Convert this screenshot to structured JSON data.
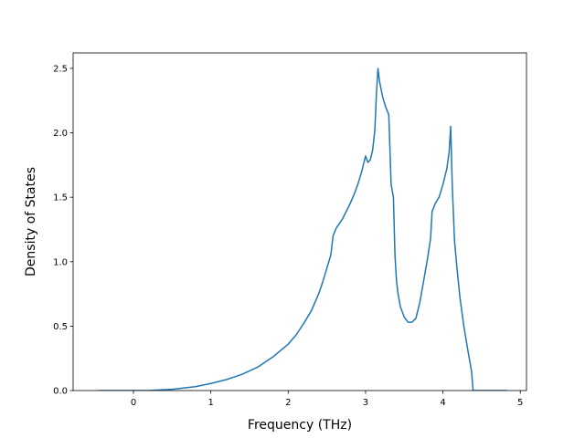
{
  "chart_data": {
    "type": "line",
    "xlabel": "Frequency (THz)",
    "ylabel": "Density of States",
    "xlim": [
      -0.78,
      5.08
    ],
    "ylim": [
      0.0,
      2.62
    ],
    "xticks": [
      0,
      1,
      2,
      3,
      4,
      5
    ],
    "yticks": [
      0.0,
      0.5,
      1.0,
      1.5,
      2.0,
      2.5
    ],
    "xtick_labels": [
      "0",
      "1",
      "2",
      "3",
      "4",
      "5"
    ],
    "ytick_labels": [
      "0.0",
      "0.5",
      "1.0",
      "1.5",
      "2.0",
      "2.5"
    ],
    "grid": false,
    "series": [
      {
        "color": "#1f77b4",
        "x": [
          -0.45,
          -0.2,
          0.0,
          0.2,
          0.5,
          0.8,
          1.0,
          1.2,
          1.4,
          1.6,
          1.8,
          2.0,
          2.1,
          2.2,
          2.3,
          2.4,
          2.45,
          2.5,
          2.55,
          2.58,
          2.62,
          2.7,
          2.8,
          2.85,
          2.9,
          2.95,
          3.0,
          3.03,
          3.06,
          3.09,
          3.12,
          3.14,
          3.16,
          3.18,
          3.22,
          3.26,
          3.3,
          3.33,
          3.36,
          3.38,
          3.4,
          3.42,
          3.45,
          3.5,
          3.55,
          3.6,
          3.65,
          3.7,
          3.75,
          3.8,
          3.84,
          3.86,
          3.9,
          3.95,
          4.0,
          4.05,
          4.08,
          4.1,
          4.12,
          4.15,
          4.18,
          4.22,
          4.27,
          4.32,
          4.37,
          4.39,
          4.41,
          4.6,
          4.82
        ],
        "y": [
          0.0,
          0.0,
          0.0,
          0.0,
          0.01,
          0.03,
          0.055,
          0.085,
          0.125,
          0.18,
          0.26,
          0.36,
          0.43,
          0.52,
          0.62,
          0.76,
          0.85,
          0.95,
          1.05,
          1.2,
          1.26,
          1.33,
          1.45,
          1.52,
          1.6,
          1.7,
          1.82,
          1.77,
          1.79,
          1.86,
          2.02,
          2.3,
          2.5,
          2.4,
          2.28,
          2.2,
          2.14,
          1.6,
          1.5,
          1.05,
          0.85,
          0.75,
          0.65,
          0.57,
          0.53,
          0.53,
          0.56,
          0.68,
          0.85,
          1.02,
          1.18,
          1.39,
          1.45,
          1.5,
          1.6,
          1.72,
          1.85,
          2.05,
          1.6,
          1.16,
          0.96,
          0.72,
          0.5,
          0.32,
          0.15,
          0.0,
          0.0,
          0.0,
          0.0
        ]
      }
    ]
  }
}
